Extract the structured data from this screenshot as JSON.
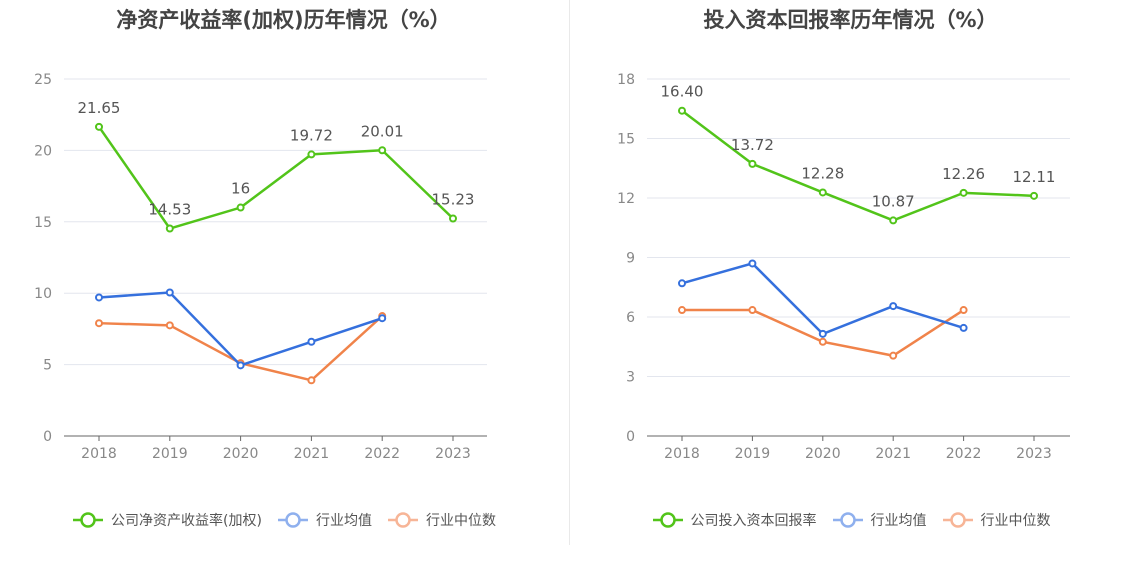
{
  "chart_data": [
    {
      "type": "line",
      "title": "净资产收益率(加权)历年情况（%）",
      "categories": [
        "2018",
        "2019",
        "2020",
        "2021",
        "2022",
        "2023"
      ],
      "ylim": [
        0,
        25
      ],
      "yticks": [
        0,
        5,
        10,
        15,
        20,
        25
      ],
      "series": [
        {
          "name": "公司净资产收益率(加权)",
          "color": "#52c41a",
          "values": [
            21.65,
            14.53,
            16,
            19.72,
            20.01,
            15.23
          ],
          "labels": [
            "21.65",
            "14.53",
            "16",
            "19.72",
            "20.01",
            "15.23"
          ]
        },
        {
          "name": "行业均值",
          "color": "#3570dd",
          "values": [
            9.7,
            10.05,
            4.95,
            6.6,
            8.25,
            null
          ]
        },
        {
          "name": "行业中位数",
          "color": "#f0834a",
          "values": [
            7.9,
            7.75,
            5.1,
            3.9,
            8.4,
            null
          ]
        }
      ],
      "legend": [
        "公司净资产收益率(加权)",
        "行业均值",
        "行业中位数"
      ]
    },
    {
      "type": "line",
      "title": "投入资本回报率历年情况（%）",
      "categories": [
        "2018",
        "2019",
        "2020",
        "2021",
        "2022",
        "2023"
      ],
      "ylim": [
        0,
        18
      ],
      "yticks": [
        0,
        3,
        6,
        9,
        12,
        15,
        18
      ],
      "series": [
        {
          "name": "公司投入资本回报率",
          "color": "#52c41a",
          "values": [
            16.4,
            13.72,
            12.28,
            10.87,
            12.26,
            12.11
          ],
          "labels": [
            "16.40",
            "13.72",
            "12.28",
            "10.87",
            "12.26",
            "12.11"
          ]
        },
        {
          "name": "行业均值",
          "color": "#3570dd",
          "values": [
            7.7,
            8.7,
            5.15,
            6.55,
            5.45,
            null
          ]
        },
        {
          "name": "行业中位数",
          "color": "#f0834a",
          "values": [
            6.35,
            6.35,
            4.75,
            4.05,
            6.35,
            null
          ]
        }
      ],
      "legend": [
        "公司投入资本回报率",
        "行业均值",
        "行业中位数"
      ]
    }
  ]
}
